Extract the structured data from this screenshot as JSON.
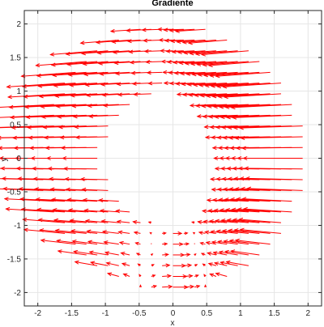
{
  "chart_data": {
    "type": "quiver",
    "title": "Gradiente",
    "xlabel": "x",
    "ylabel": "y",
    "xlim": [
      -2.2,
      2.2
    ],
    "ylim": [
      -2.2,
      2.2
    ],
    "xticks": [
      -2,
      -1.5,
      -1,
      -0.5,
      0,
      0.5,
      1,
      1.5,
      2
    ],
    "xtick_labels": [
      "-2",
      "-1.5",
      "-1",
      "-0.5",
      "0",
      "0.5",
      "1",
      "1.5",
      "2"
    ],
    "yticks": [
      -2,
      -1.5,
      -1,
      -0.5,
      0,
      0.5,
      1,
      1.5,
      2
    ],
    "ytick_labels": [
      "-2",
      "-1.5",
      "-1",
      "-0.5",
      "0",
      "0.5",
      "1",
      "1.5",
      "2"
    ],
    "grid": true,
    "arrow_color": "#ff0000",
    "grid_step": 0.16,
    "domain": {
      "r_min": 1.0,
      "r_max": 2.0
    },
    "field": "scaled radial-tangential vector field on the annulus 1 ≤ r ≤ 2"
  },
  "colors": {
    "axes": "#262626",
    "grid": "#e6e6e6",
    "background": "#ffffff"
  }
}
